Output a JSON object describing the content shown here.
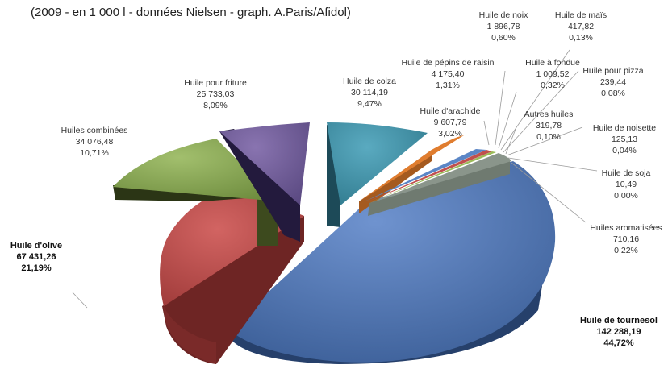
{
  "subtitle": "(2009 - en 1 000 l - données Nielsen - graph. A.Paris/Afidol)",
  "chart_data": {
    "type": "pie",
    "title": "",
    "subtitle": "(2009 - en 1 000 l - données Nielsen - graph. A.Paris/Afidol)",
    "unit": "1 000 l",
    "exploded_3d": true,
    "slices": [
      {
        "name": "Huile de tournesol",
        "value": "142 288,19",
        "percent": "44,72%",
        "raw": 142288.19,
        "color": "#4a6fa8",
        "bold": true
      },
      {
        "name": "Huile d'olive",
        "value": "67 431,26",
        "percent": "21,19%",
        "raw": 67431.26,
        "color": "#b94948",
        "bold": true
      },
      {
        "name": "Huiles combinées",
        "value": "34 076,48",
        "percent": "10,71%",
        "raw": 34076.48,
        "color": "#87a451",
        "bold": false
      },
      {
        "name": "Huile pour friture",
        "value": "25 733,03",
        "percent": "8,09%",
        "raw": 25733.03,
        "color": "#6e5a96",
        "bold": false
      },
      {
        "name": "Huile de colza",
        "value": "30 114,19",
        "percent": "9,47%",
        "raw": 30114.19,
        "color": "#3f8ea3",
        "bold": false
      },
      {
        "name": "Huile d'arachide",
        "value": "9 607,79",
        "percent": "3,02%",
        "raw": 9607.79,
        "color": "#e07d2f",
        "bold": false
      },
      {
        "name": "Huile de pépins de raisin",
        "value": "4 175,40",
        "percent": "1,31%",
        "raw": 4175.4,
        "color": "#5b86c6",
        "bold": false
      },
      {
        "name": "Huile de noix",
        "value": "1 896,78",
        "percent": "0,60%",
        "raw": 1896.78,
        "color": "#c0504d",
        "bold": false
      },
      {
        "name": "Huile à fondue",
        "value": "1 009,52",
        "percent": "0,32%",
        "raw": 1009.52,
        "color": "#9bbb59",
        "bold": false
      },
      {
        "name": "Huile de maïs",
        "value": "417,82",
        "percent": "0,13%",
        "raw": 417.82,
        "color": "#8064a2",
        "bold": false
      },
      {
        "name": "Huile pour pizza",
        "value": "239,44",
        "percent": "0,08%",
        "raw": 239.44,
        "color": "#4bacc6",
        "bold": false
      },
      {
        "name": "Autres huiles",
        "value": "319,78",
        "percent": "0,10%",
        "raw": 319.78,
        "color": "#f79646",
        "bold": false
      },
      {
        "name": "Huile de noisette",
        "value": "125,13",
        "percent": "0,04%",
        "raw": 125.13,
        "color": "#2c4d75",
        "bold": false
      },
      {
        "name": "Huile de soja",
        "value": "10,49",
        "percent": "0,00%",
        "raw": 10.49,
        "color": "#772c2a",
        "bold": false
      },
      {
        "name": "Huiles aromatisées",
        "value": "710,16",
        "percent": "0,22%",
        "raw": 710.16,
        "color": "#7f8a80",
        "bold": false
      }
    ]
  }
}
